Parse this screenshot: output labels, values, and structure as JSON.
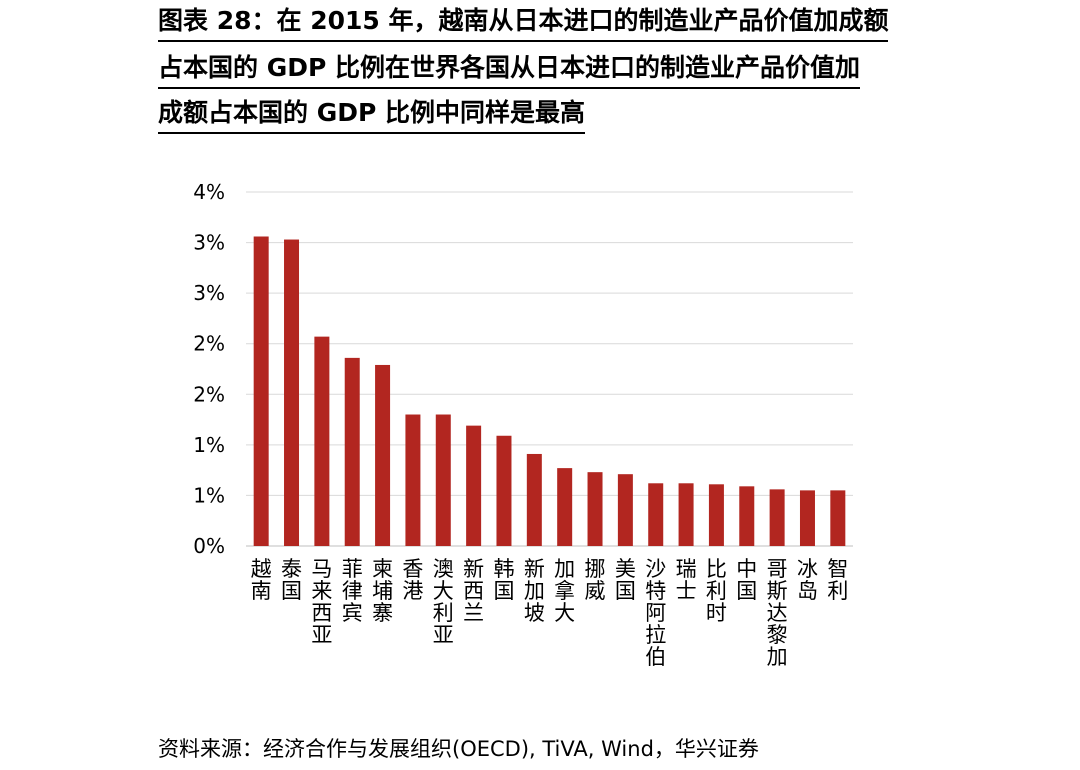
{
  "title_lines": [
    "图表 28：在 2015 年，越南从日本进口的制造业产品价值加成额",
    "占本国的 GDP 比例在世界各国从日本进口的制造业产品价值加",
    "成额占本国的 GDP 比例中同样是最高"
  ],
  "source": "资料来源：经济合作与发展组织(OECD), TiVA, Wind，华兴证券",
  "colors": {
    "bar": "#b22620",
    "grid": "#d9d9d9"
  },
  "chart_data": {
    "type": "bar",
    "categories": [
      "越南",
      "泰国",
      "马来西亚",
      "菲律宾",
      "柬埔寨",
      "香港",
      "澳大利亚",
      "新西兰",
      "韩国",
      "新加坡",
      "加拿大",
      "挪威",
      "美国",
      "沙特阿拉伯",
      "瑞士",
      "比利时",
      "中国",
      "哥斯达黎加",
      "冰岛",
      "智利"
    ],
    "values": [
      3.06,
      3.03,
      2.07,
      1.86,
      1.79,
      1.3,
      1.3,
      1.19,
      1.09,
      0.91,
      0.77,
      0.73,
      0.71,
      0.62,
      0.62,
      0.61,
      0.59,
      0.56,
      0.55,
      0.55
    ],
    "ylim": [
      0,
      3.5
    ],
    "ytick_values": [
      0,
      0.5,
      1.0,
      1.5,
      2.0,
      2.5,
      3.0,
      3.5
    ],
    "ytick_labels": [
      "0%",
      "1%",
      "1%",
      "2%",
      "2%",
      "3%",
      "3%",
      "4%"
    ],
    "grid": true,
    "legend": "none"
  }
}
